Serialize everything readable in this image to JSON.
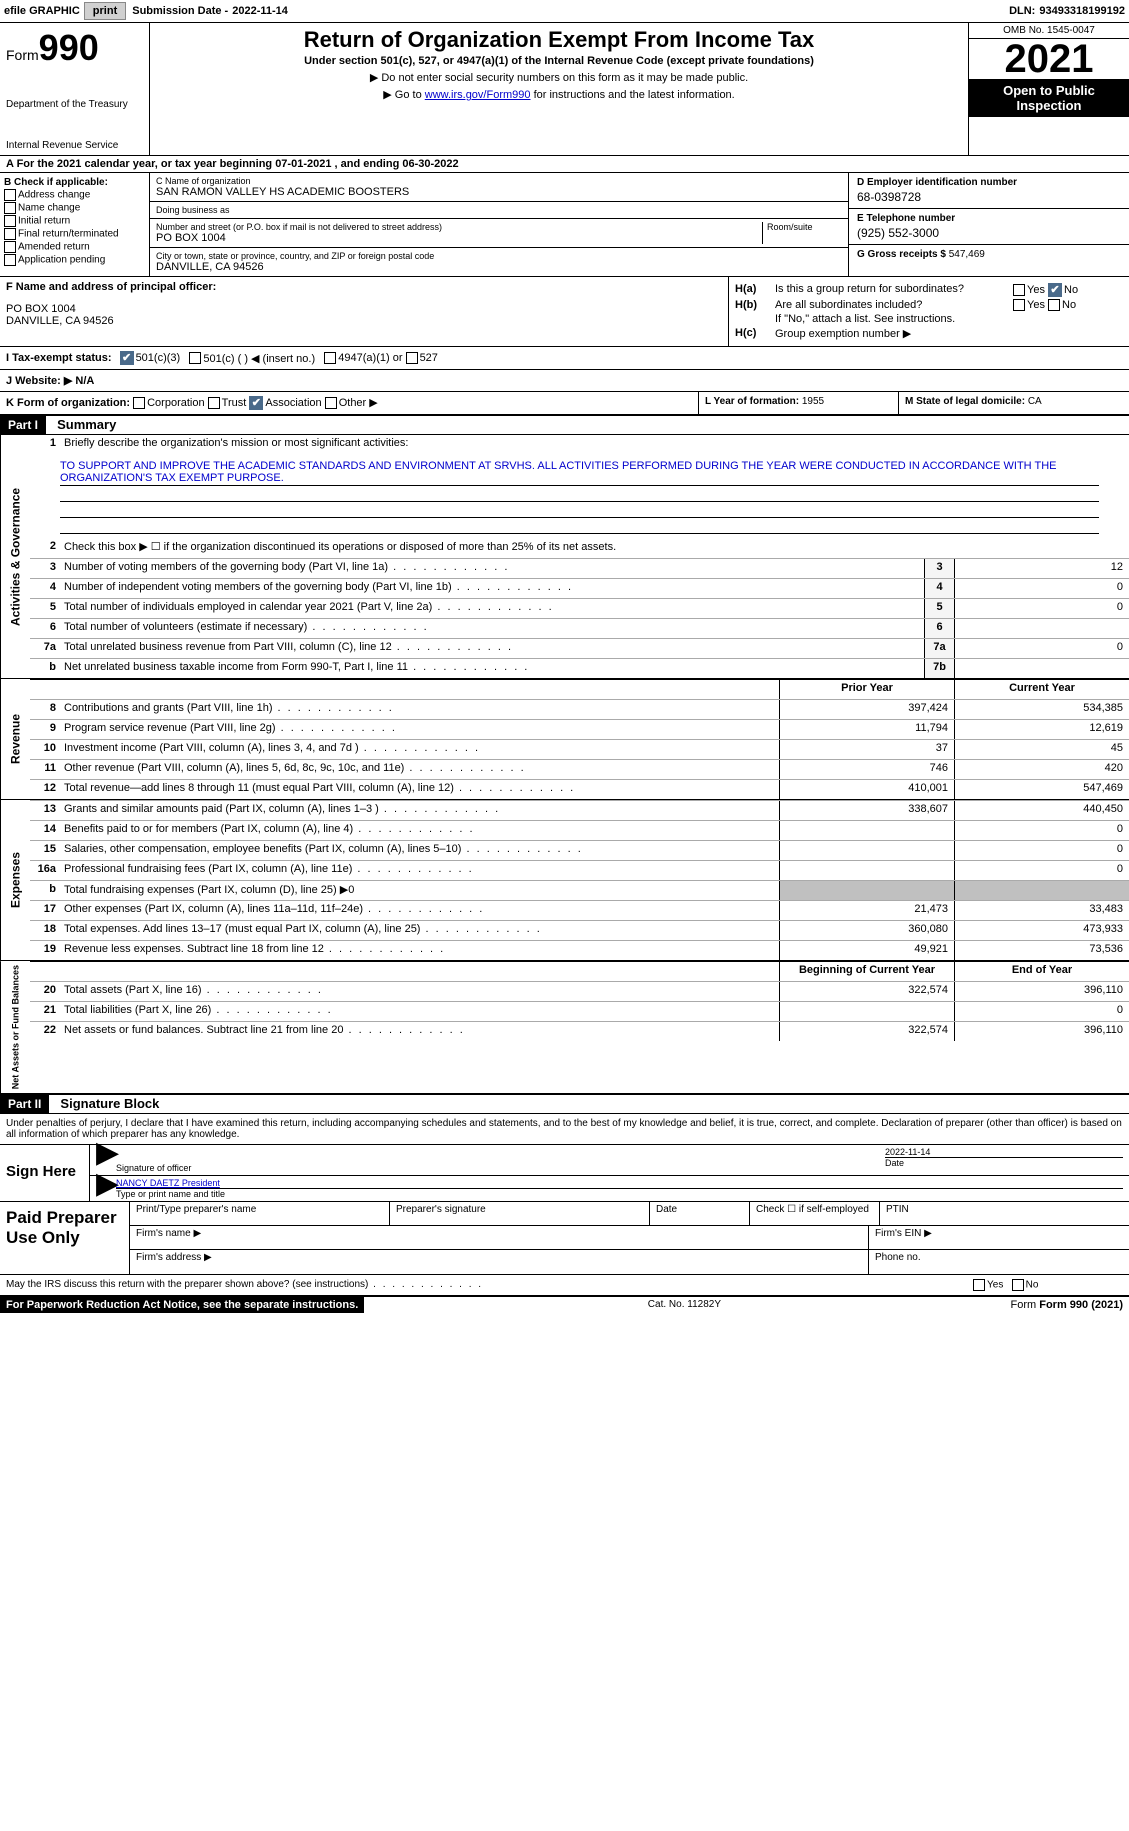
{
  "topbar": {
    "efile": "efile GRAPHIC",
    "print": "print",
    "sub_lbl": "Submission Date -",
    "sub_val": "2022-11-14",
    "dln_lbl": "DLN:",
    "dln_val": "93493318199192"
  },
  "header": {
    "form_word": "Form",
    "form_num": "990",
    "dept": "Department of the Treasury",
    "irs": "Internal Revenue Service",
    "title": "Return of Organization Exempt From Income Tax",
    "sub": "Under section 501(c), 527, or 4947(a)(1) of the Internal Revenue Code (except private foundations)",
    "note1": "▶ Do not enter social security numbers on this form as it may be made public.",
    "note2_pre": "▶ Go to ",
    "note2_link": "www.irs.gov/Form990",
    "note2_post": " for instructions and the latest information.",
    "omb": "OMB No. 1545-0047",
    "year": "2021",
    "otp": "Open to Public Inspection"
  },
  "row_a": "A   For the 2021 calendar year, or tax year beginning 07-01-2021    , and ending 06-30-2022",
  "col_b": {
    "hdr": "B Check if applicable:",
    "items": [
      "Address change",
      "Name change",
      "Initial return",
      "Final return/terminated",
      "Amended return",
      "Application pending"
    ]
  },
  "col_c": {
    "name_lbl": "C Name of organization",
    "name_val": "SAN RAMON VALLEY HS ACADEMIC BOOSTERS",
    "dba_lbl": "Doing business as",
    "dba_val": "",
    "addr_lbl": "Number and street (or P.O. box if mail is not delivered to street address)",
    "room_lbl": "Room/suite",
    "addr_val": "PO BOX 1004",
    "city_lbl": "City or town, state or province, country, and ZIP or foreign postal code",
    "city_val": "DANVILLE, CA  94526"
  },
  "col_d": {
    "d_lbl": "D Employer identification number",
    "d_val": "68-0398728",
    "e_lbl": "E Telephone number",
    "e_val": "(925) 552-3000",
    "g_lbl": "G Gross receipts $",
    "g_val": "547,469"
  },
  "col_f": {
    "lbl": "F Name and address of principal officer:",
    "l1": "PO BOX 1004",
    "l2": "DANVILLE, CA  94526"
  },
  "col_h": {
    "a_lbl": "H(a)",
    "a_txt": "Is this a group return for subordinates?",
    "b_lbl": "H(b)",
    "b_txt": "Are all subordinates included?",
    "b_note": "If \"No,\" attach a list. See instructions.",
    "c_lbl": "H(c)",
    "c_txt": "Group exemption number ▶",
    "yes": "Yes",
    "no": "No"
  },
  "row_i": {
    "lbl": "I   Tax-exempt status:",
    "o1": "501(c)(3)",
    "o2": "501(c) (   ) ◀ (insert no.)",
    "o3": "4947(a)(1) or",
    "o4": "527"
  },
  "row_j": {
    "lbl": "J   Website: ▶",
    "val": "N/A"
  },
  "row_k": {
    "lbl": "K Form of organization:",
    "o1": "Corporation",
    "o2": "Trust",
    "o3": "Association",
    "o4": "Other ▶"
  },
  "row_l": {
    "lbl": "L Year of formation:",
    "val": "1955"
  },
  "row_m": {
    "lbl": "M State of legal domicile:",
    "val": "CA"
  },
  "part1": {
    "hdr": "Part I",
    "title": "Summary",
    "q1_lbl": "1",
    "q1_txt": "Briefly describe the organization's mission or most significant activities:",
    "mission": "TO SUPPORT AND IMPROVE THE ACADEMIC STANDARDS AND ENVIRONMENT AT SRVHS. ALL ACTIVITIES PERFORMED DURING THE YEAR WERE CONDUCTED IN ACCORDANCE WITH THE ORGANIZATION'S TAX EXEMPT PURPOSE.",
    "q2_txt": "Check this box ▶ ☐ if the organization discontinued its operations or disposed of more than 25% of its net assets.",
    "side_ag": "Activities & Governance",
    "side_rev": "Revenue",
    "side_exp": "Expenses",
    "side_net": "Net Assets or Fund Balances",
    "rows_ag": [
      {
        "n": "3",
        "d": "Number of voting members of the governing body (Part VI, line 1a)",
        "b": "3",
        "v": "12"
      },
      {
        "n": "4",
        "d": "Number of independent voting members of the governing body (Part VI, line 1b)",
        "b": "4",
        "v": "0"
      },
      {
        "n": "5",
        "d": "Total number of individuals employed in calendar year 2021 (Part V, line 2a)",
        "b": "5",
        "v": "0"
      },
      {
        "n": "6",
        "d": "Total number of volunteers (estimate if necessary)",
        "b": "6",
        "v": ""
      },
      {
        "n": "7a",
        "d": "Total unrelated business revenue from Part VIII, column (C), line 12",
        "b": "7a",
        "v": "0"
      },
      {
        "n": "b",
        "d": "Net unrelated business taxable income from Form 990-T, Part I, line 11",
        "b": "7b",
        "v": ""
      }
    ],
    "hdr_prior": "Prior Year",
    "hdr_curr": "Current Year",
    "rows_rev": [
      {
        "n": "8",
        "d": "Contributions and grants (Part VIII, line 1h)",
        "p": "397,424",
        "c": "534,385"
      },
      {
        "n": "9",
        "d": "Program service revenue (Part VIII, line 2g)",
        "p": "11,794",
        "c": "12,619"
      },
      {
        "n": "10",
        "d": "Investment income (Part VIII, column (A), lines 3, 4, and 7d )",
        "p": "37",
        "c": "45"
      },
      {
        "n": "11",
        "d": "Other revenue (Part VIII, column (A), lines 5, 6d, 8c, 9c, 10c, and 11e)",
        "p": "746",
        "c": "420"
      },
      {
        "n": "12",
        "d": "Total revenue—add lines 8 through 11 (must equal Part VIII, column (A), line 12)",
        "p": "410,001",
        "c": "547,469"
      }
    ],
    "rows_exp": [
      {
        "n": "13",
        "d": "Grants and similar amounts paid (Part IX, column (A), lines 1–3 )",
        "p": "338,607",
        "c": "440,450"
      },
      {
        "n": "14",
        "d": "Benefits paid to or for members (Part IX, column (A), line 4)",
        "p": "",
        "c": "0"
      },
      {
        "n": "15",
        "d": "Salaries, other compensation, employee benefits (Part IX, column (A), lines 5–10)",
        "p": "",
        "c": "0"
      },
      {
        "n": "16a",
        "d": "Professional fundraising fees (Part IX, column (A), line 11e)",
        "p": "",
        "c": "0"
      },
      {
        "n": "b",
        "d": "Total fundraising expenses (Part IX, column (D), line 25) ▶0",
        "p": "shade",
        "c": "shade"
      },
      {
        "n": "17",
        "d": "Other expenses (Part IX, column (A), lines 11a–11d, 11f–24e)",
        "p": "21,473",
        "c": "33,483"
      },
      {
        "n": "18",
        "d": "Total expenses. Add lines 13–17 (must equal Part IX, column (A), line 25)",
        "p": "360,080",
        "c": "473,933"
      },
      {
        "n": "19",
        "d": "Revenue less expenses. Subtract line 18 from line 12",
        "p": "49,921",
        "c": "73,536"
      }
    ],
    "hdr_beg": "Beginning of Current Year",
    "hdr_end": "End of Year",
    "rows_net": [
      {
        "n": "20",
        "d": "Total assets (Part X, line 16)",
        "p": "322,574",
        "c": "396,110"
      },
      {
        "n": "21",
        "d": "Total liabilities (Part X, line 26)",
        "p": "",
        "c": "0"
      },
      {
        "n": "22",
        "d": "Net assets or fund balances. Subtract line 21 from line 20",
        "p": "322,574",
        "c": "396,110"
      }
    ]
  },
  "part2": {
    "hdr": "Part II",
    "title": "Signature Block",
    "decl": "Under penalties of perjury, I declare that I have examined this return, including accompanying schedules and statements, and to the best of my knowledge and belief, it is true, correct, and complete. Declaration of preparer (other than officer) is based on all information of which preparer has any knowledge.",
    "sign_here": "Sign Here",
    "sig_officer": "Signature of officer",
    "date_lbl": "Date",
    "date_val": "2022-11-14",
    "name_title": "NANCY DAETZ  President",
    "type_name": "Type or print name and title",
    "paid": "Paid Preparer Use Only",
    "pt_name": "Print/Type preparer's name",
    "pt_sig": "Preparer's signature",
    "pt_date": "Date",
    "pt_check": "Check ☐ if self-employed",
    "pt_ptin": "PTIN",
    "firm_name": "Firm's name   ▶",
    "firm_ein": "Firm's EIN ▶",
    "firm_addr": "Firm's address ▶",
    "phone": "Phone no."
  },
  "footer": {
    "q": "May the IRS discuss this return with the preparer shown above? (see instructions)",
    "yes": "Yes",
    "no": "No",
    "pra": "For Paperwork Reduction Act Notice, see the separate instructions.",
    "cat": "Cat. No. 11282Y",
    "form": "Form 990 (2021)"
  }
}
